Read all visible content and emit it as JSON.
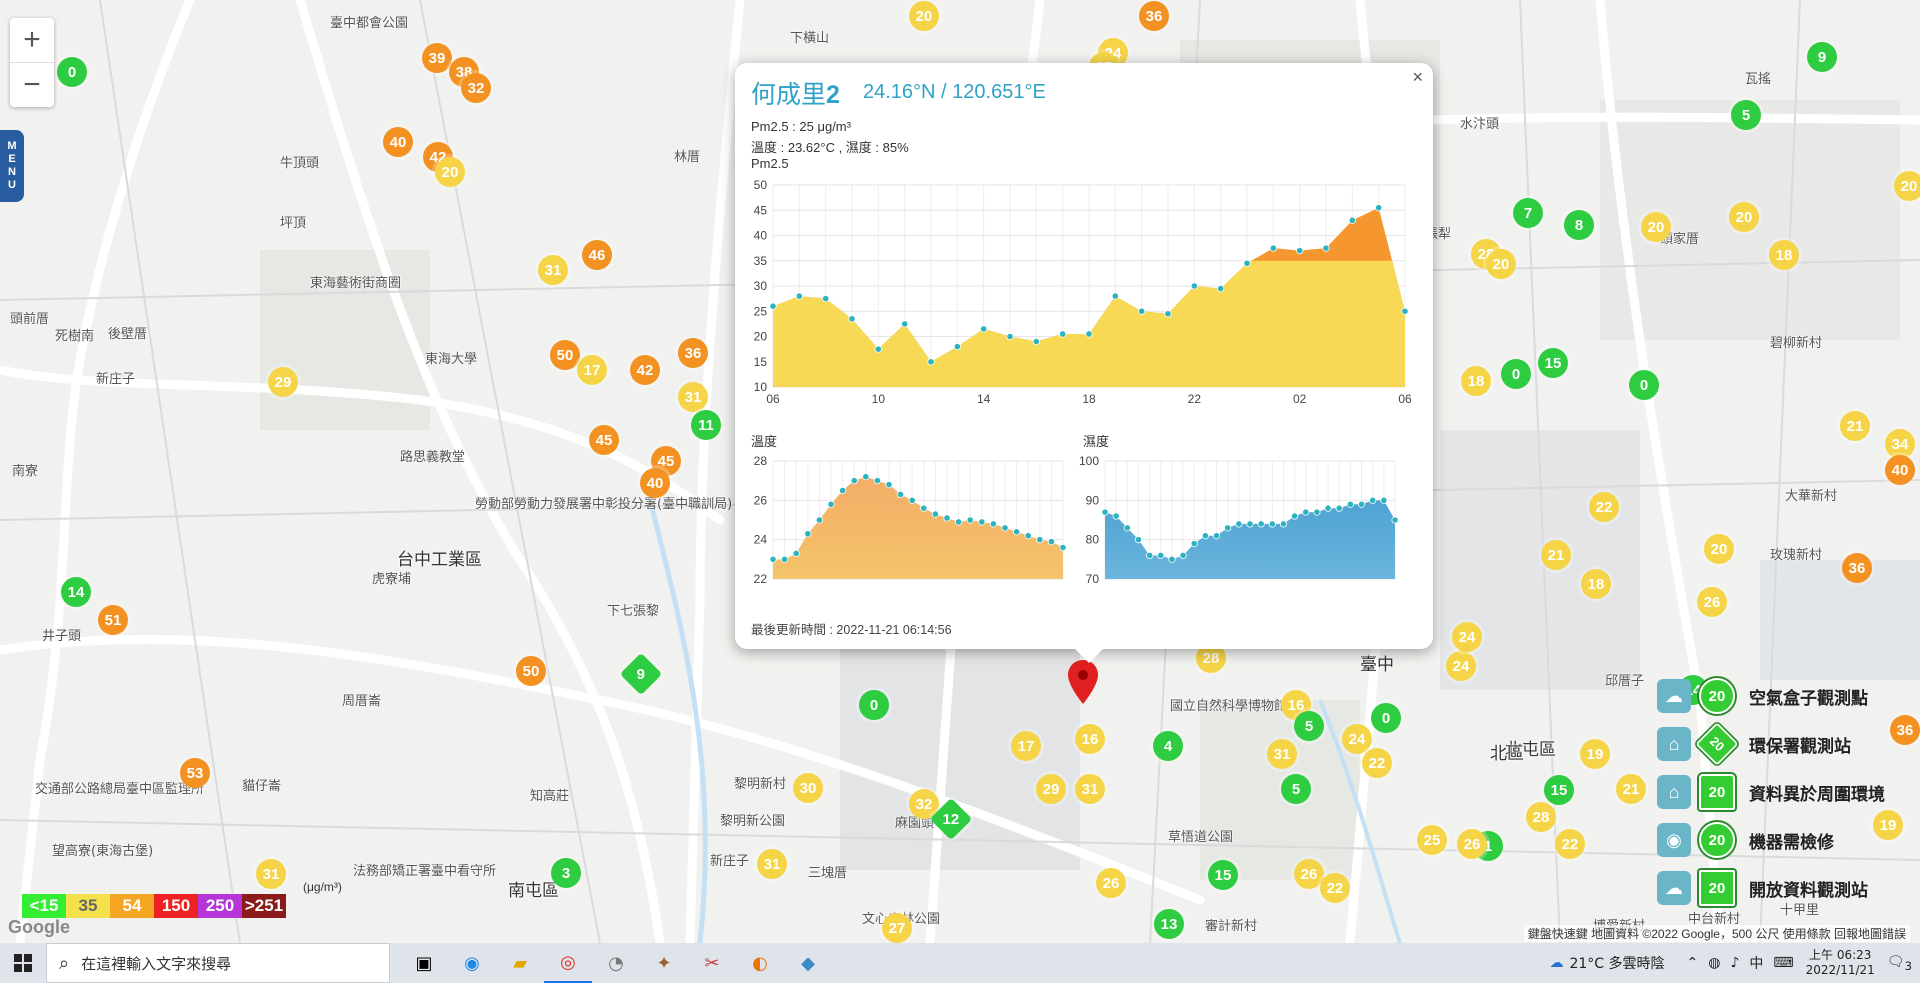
{
  "colors": {
    "good": "#2ecc40",
    "moderate": "#f5d547",
    "usg": "#f39223",
    "unhealthy": "#e8231b",
    "very": "#b32fd0",
    "hazard": "#8b0000",
    "accent": "#2fa2c7"
  },
  "map": {
    "zoom_in_label": "+",
    "zoom_out_label": "−",
    "menu_label": [
      "M",
      "E",
      "N",
      "U"
    ],
    "labels": [
      {
        "text": "臺中都會公園"
      },
      {
        "text": "牛頂頭"
      },
      {
        "text": "坪頂"
      },
      {
        "text": "東海藝術街商圈"
      },
      {
        "text": "頭前厝"
      },
      {
        "text": "死樹南"
      },
      {
        "text": "後壁厝"
      },
      {
        "text": "新庄子"
      },
      {
        "text": "東海大學"
      },
      {
        "text": "路思義教堂"
      },
      {
        "text": "南寮"
      },
      {
        "text": "勞動部勞動力發展署中彰投分署(臺中職訓局)"
      },
      {
        "text": "台中工業區"
      },
      {
        "text": "虎寮埔"
      },
      {
        "text": "下七張黎"
      },
      {
        "text": "井子頭"
      },
      {
        "text": "周厝崙"
      },
      {
        "text": "交通部公路總局臺中區監理所"
      },
      {
        "text": "貓仔崙"
      },
      {
        "text": "望高寮(東海古堡)"
      },
      {
        "text": "法務部矯正署臺中看守所"
      },
      {
        "text": "南屯區"
      },
      {
        "text": "知高莊"
      },
      {
        "text": "黎明新村"
      },
      {
        "text": "黎明新公園"
      },
      {
        "text": "新庄子"
      },
      {
        "text": "三塊厝"
      },
      {
        "text": "麻園頭"
      },
      {
        "text": "文心森林公園"
      },
      {
        "text": "國立自然科學博物館"
      },
      {
        "text": "審計新村"
      },
      {
        "text": "臺中"
      },
      {
        "text": "北屯區"
      },
      {
        "text": "北區"
      },
      {
        "text": "邱厝子"
      },
      {
        "text": "玫瑰新村"
      },
      {
        "text": "大華新村"
      },
      {
        "text": "碧柳新村"
      },
      {
        "text": "頭家厝"
      },
      {
        "text": "水汴頭"
      },
      {
        "text": "瓦搖"
      },
      {
        "text": "下橫山"
      },
      {
        "text": "林厝"
      },
      {
        "text": "四張犁"
      },
      {
        "text": "博愛新村"
      },
      {
        "text": "中台新村"
      },
      {
        "text": "十甲里"
      },
      {
        "text": "草悟道公園"
      }
    ],
    "markers": [
      {
        "v": "0",
        "c": "good"
      },
      {
        "v": "39",
        "c": "usg"
      },
      {
        "v": "38",
        "c": "usg"
      },
      {
        "v": "32",
        "c": "usg"
      },
      {
        "v": "40",
        "c": "usg"
      },
      {
        "v": "42",
        "c": "usg"
      },
      {
        "v": "20",
        "c": "moderate"
      },
      {
        "v": "36",
        "c": "usg"
      },
      {
        "v": "46",
        "c": "usg"
      },
      {
        "v": "31",
        "c": "moderate"
      },
      {
        "v": "50",
        "c": "usg"
      },
      {
        "v": "17",
        "c": "moderate"
      },
      {
        "v": "42",
        "c": "usg"
      },
      {
        "v": "36",
        "c": "usg"
      },
      {
        "v": "31",
        "c": "moderate"
      },
      {
        "v": "11",
        "c": "good"
      },
      {
        "v": "45",
        "c": "usg"
      },
      {
        "v": "45",
        "c": "usg"
      },
      {
        "v": "40",
        "c": "usg"
      },
      {
        "v": "29",
        "c": "moderate"
      },
      {
        "v": "14",
        "c": "good"
      },
      {
        "v": "51",
        "c": "usg"
      },
      {
        "v": "50",
        "c": "usg"
      },
      {
        "v": "53",
        "c": "usg"
      },
      {
        "v": "31",
        "c": "moderate"
      },
      {
        "v": "3",
        "c": "good"
      },
      {
        "v": "9",
        "c": "good",
        "d": true
      },
      {
        "v": "0",
        "c": "good"
      },
      {
        "v": "30",
        "c": "moderate"
      },
      {
        "v": "32",
        "c": "moderate"
      },
      {
        "v": "12",
        "c": "good",
        "d": true
      },
      {
        "v": "31",
        "c": "moderate"
      },
      {
        "v": "27",
        "c": "moderate"
      },
      {
        "v": "17",
        "c": "moderate"
      },
      {
        "v": "29",
        "c": "moderate"
      },
      {
        "v": "31",
        "c": "moderate"
      },
      {
        "v": "16",
        "c": "moderate"
      },
      {
        "v": "4",
        "c": "good"
      },
      {
        "v": "26",
        "c": "moderate"
      },
      {
        "v": "15",
        "c": "good"
      },
      {
        "v": "13",
        "c": "good"
      },
      {
        "v": "28",
        "c": "moderate"
      },
      {
        "v": "16",
        "c": "moderate"
      },
      {
        "v": "31",
        "c": "moderate"
      },
      {
        "v": "5",
        "c": "good"
      },
      {
        "v": "5",
        "c": "good"
      },
      {
        "v": "24",
        "c": "moderate"
      },
      {
        "v": "22",
        "c": "moderate"
      },
      {
        "v": "0",
        "c": "good"
      },
      {
        "v": "26",
        "c": "moderate"
      },
      {
        "v": "22",
        "c": "moderate"
      },
      {
        "v": "25",
        "c": "moderate"
      },
      {
        "v": "1",
        "c": "good"
      },
      {
        "v": "24",
        "c": "moderate"
      },
      {
        "v": "24",
        "c": "moderate"
      },
      {
        "v": "28",
        "c": "moderate"
      },
      {
        "v": "21",
        "c": "moderate"
      },
      {
        "v": "19",
        "c": "moderate"
      },
      {
        "v": "21",
        "c": "moderate"
      },
      {
        "v": "22",
        "c": "moderate"
      },
      {
        "v": "18",
        "c": "moderate"
      },
      {
        "v": "20",
        "c": "moderate"
      },
      {
        "v": "26",
        "c": "moderate"
      },
      {
        "v": "14",
        "c": "good"
      },
      {
        "v": "9",
        "c": "good"
      },
      {
        "v": "5",
        "c": "good"
      },
      {
        "v": "7",
        "c": "good"
      },
      {
        "v": "8",
        "c": "good"
      },
      {
        "v": "20",
        "c": "moderate"
      },
      {
        "v": "20",
        "c": "moderate"
      },
      {
        "v": "18",
        "c": "moderate"
      },
      {
        "v": "28",
        "c": "moderate"
      },
      {
        "v": "20",
        "c": "moderate"
      },
      {
        "v": "18",
        "c": "moderate"
      },
      {
        "v": "0",
        "c": "good"
      },
      {
        "v": "15",
        "c": "good"
      },
      {
        "v": "0",
        "c": "good"
      },
      {
        "v": "21",
        "c": "moderate"
      },
      {
        "v": "34",
        "c": "moderate"
      },
      {
        "v": "20",
        "c": "moderate"
      },
      {
        "v": "40",
        "c": "usg"
      },
      {
        "v": "19",
        "c": "moderate"
      },
      {
        "v": "36",
        "c": "usg"
      },
      {
        "v": "36",
        "c": "usg"
      },
      {
        "v": "20",
        "c": "moderate"
      },
      {
        "v": "24",
        "c": "moderate"
      },
      {
        "v": "25",
        "c": "moderate"
      },
      {
        "v": "15",
        "c": "good"
      },
      {
        "v": "22",
        "c": "moderate"
      },
      {
        "v": "26",
        "c": "moderate"
      }
    ]
  },
  "legend": {
    "levels": [
      {
        "label": "<15",
        "color": "#33ee33",
        "text": "#ffffff"
      },
      {
        "label": "35",
        "color": "#f5e14a",
        "text": "#666666"
      },
      {
        "label": "54",
        "color": "#f5a623",
        "text": "#ffffff"
      },
      {
        "label": "150",
        "color": "#ee2222",
        "text": "#ffffff"
      },
      {
        "label": "250",
        "color": "#b535d8",
        "text": "#ffffff"
      },
      {
        "label": ">251",
        "color": "#8b1a1a",
        "text": "#ffffff"
      }
    ],
    "unit": "(μg/m³)",
    "google": "Google"
  },
  "right_legend": [
    {
      "label": "空氣盒子觀測點",
      "badge": "20"
    },
    {
      "label": "環保署觀測站",
      "badge": "20"
    },
    {
      "label": "資料異於周圍環境",
      "badge": "20"
    },
    {
      "label": "機器需檢修",
      "badge": "20"
    },
    {
      "label": "開放資料觀測站",
      "badge": "20"
    }
  ],
  "attribution": "鍵盤快速鍵   地圖資料 ©2022 Google，500 公尺          使用條款   回報地圖錯誤",
  "popup": {
    "close": "×",
    "title": "何成里",
    "title_num": "2",
    "coords": "24.16°N / 120.651°E",
    "pm25_line": "Pm2.5 : 25 μg/m³",
    "temp_line": "溫度 : 23.62°C , 濕度 : 85%",
    "chart_label": "Pm2.5",
    "temp_label": "溫度",
    "hum_label": "濕度",
    "updated": "最後更新時間 : 2022-11-21 06:14:56"
  },
  "chart_data": [
    {
      "type": "area",
      "title": "Pm2.5",
      "x": [
        "06",
        "",
        "",
        "",
        "10",
        "",
        "",
        "",
        "14",
        "",
        "",
        "",
        "18",
        "",
        "",
        "",
        "22",
        "",
        "",
        "",
        "02",
        "",
        "",
        "",
        "06"
      ],
      "xticks": [
        "06",
        "10",
        "14",
        "18",
        "22",
        "02",
        "06"
      ],
      "ylim": [
        10,
        50
      ],
      "yticks": [
        10,
        15,
        20,
        25,
        30,
        35,
        40,
        45,
        50
      ],
      "values": [
        26,
        28,
        27.5,
        23.5,
        17.5,
        22.5,
        15,
        18,
        21.5,
        20,
        19,
        20.5,
        20.5,
        28,
        25,
        24.5,
        30,
        29.5,
        34.5,
        37.5,
        37,
        37.5,
        43,
        45.5,
        25
      ],
      "threshold": 35
    },
    {
      "type": "area",
      "title": "溫度",
      "ylim": [
        22,
        28
      ],
      "yticks": [
        22,
        24,
        26,
        28
      ],
      "values": [
        23,
        23,
        23.3,
        24.3,
        25,
        25.8,
        26.5,
        27,
        27.2,
        27,
        26.8,
        26.3,
        26,
        25.6,
        25.3,
        25.1,
        24.9,
        25,
        24.9,
        24.8,
        24.6,
        24.4,
        24.2,
        24,
        23.9,
        23.6
      ],
      "color": "#f4c46a"
    },
    {
      "type": "area",
      "title": "濕度",
      "ylim": [
        70,
        100
      ],
      "yticks": [
        70,
        80,
        90,
        100
      ],
      "values": [
        87,
        86,
        83,
        80,
        76,
        76,
        75,
        76,
        79,
        81,
        81,
        83,
        84,
        84,
        84,
        84,
        84,
        86,
        87,
        87,
        88,
        88,
        89,
        89,
        90,
        90,
        85
      ],
      "color": "#6bb6de"
    }
  ],
  "taskbar": {
    "search_placeholder": "在這裡輸入文字來搜尋",
    "weather": "21°C  多雲時陰",
    "ime": "中",
    "time": "上午 06:23",
    "date": "2022/11/21",
    "notif": "3"
  }
}
